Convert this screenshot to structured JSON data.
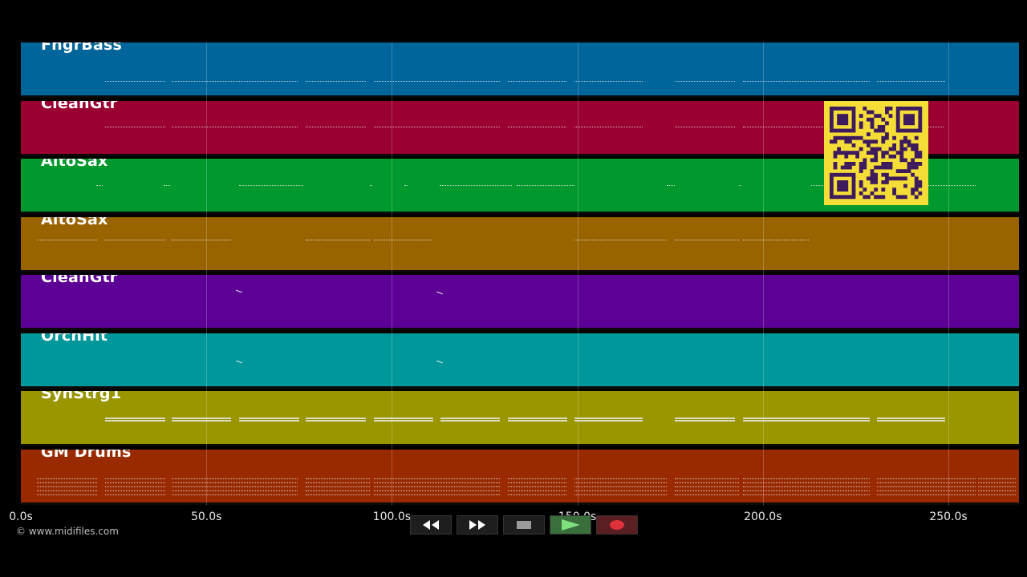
{
  "colors": {
    "background": "#000000",
    "note": "#e8e8e8",
    "qr_background": "#f5dd38",
    "qr_dark": "#3d1a5e"
  },
  "tracks": [
    {
      "name": "FngrBass",
      "color": "#00659a"
    },
    {
      "name": "CleanGtr",
      "color": "#9a0030"
    },
    {
      "name": "AltoSax",
      "color": "#00992d"
    },
    {
      "name": "AltoSax",
      "color": "#996300"
    },
    {
      "name": "CleanGtr",
      "color": "#5c0096"
    },
    {
      "name": "OrchHit",
      "color": "#00979a"
    },
    {
      "name": "SynStrg1",
      "color": "#999600"
    },
    {
      "name": "GM Drums",
      "color": "#992a00"
    }
  ],
  "timeline": {
    "max_seconds": 269,
    "ticks": [
      {
        "value": 0,
        "label": "0.0s"
      },
      {
        "value": 50,
        "label": "50.0s"
      },
      {
        "value": 100,
        "label": "100.0s"
      },
      {
        "value": 150,
        "label": "150.0s"
      },
      {
        "value": 200,
        "label": "200.0s"
      },
      {
        "value": 250,
        "label": "250.0s"
      }
    ]
  },
  "copyright": "© www.midifiles.com",
  "transport": {
    "rewind_icon": "rewind-icon",
    "fast_forward_icon": "fast-forward-icon",
    "stop_icon": "stop-icon",
    "play_icon": "play-icon",
    "record_icon": "record-icon"
  }
}
